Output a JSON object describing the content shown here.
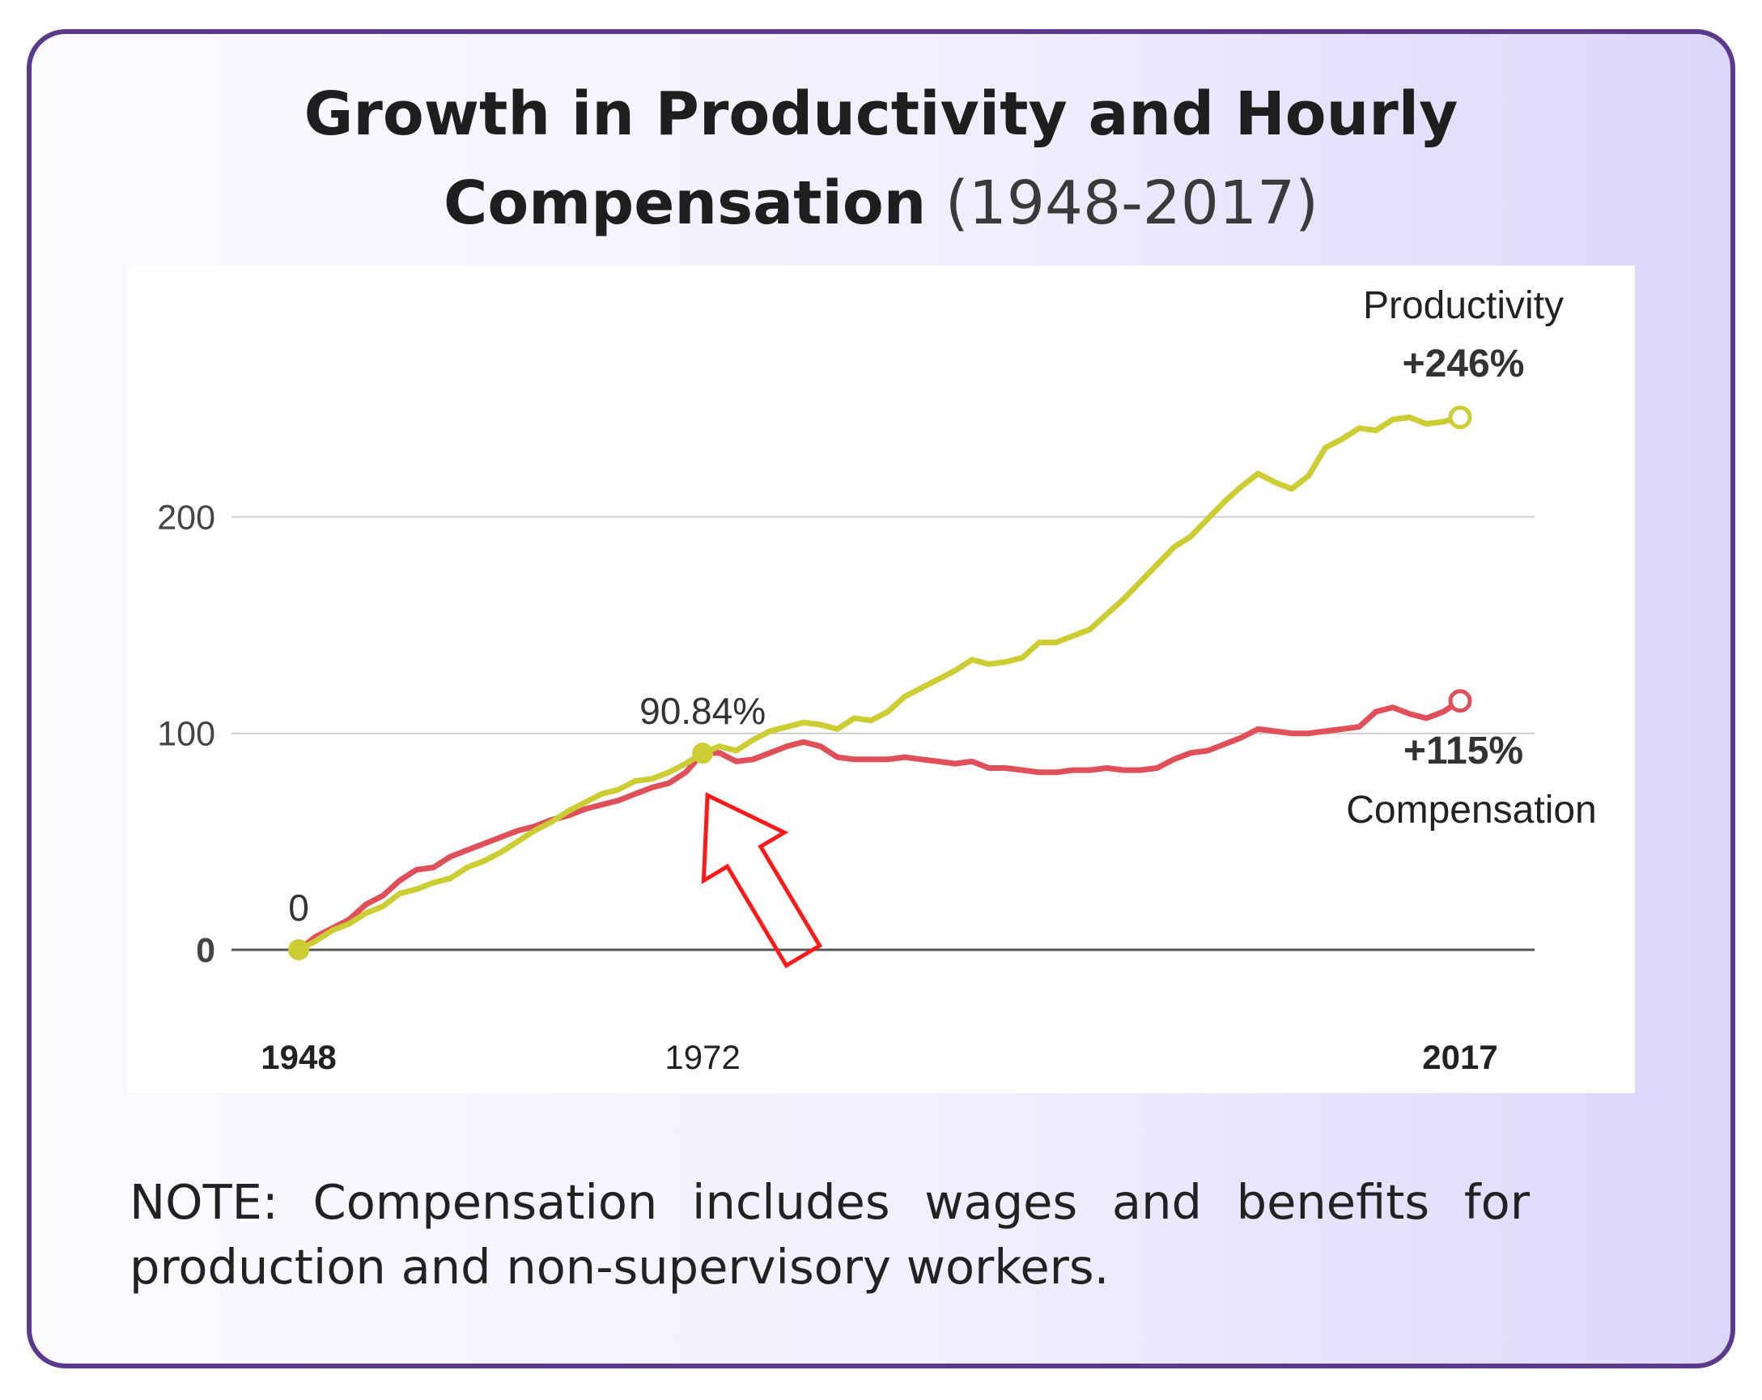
{
  "title": {
    "line1": "Growth in Productivity and Hourly",
    "line2_bold": "Compensation",
    "line2_light": "(1948-2017)"
  },
  "colors": {
    "productivity": "#cccc33",
    "compensation": "#e0505a",
    "arrow": "#ff1a1a",
    "card_border": "#5b3a8c"
  },
  "chart_data": {
    "type": "line",
    "title": "Growth in Productivity and Hourly Compensation (1948-2017)",
    "xlim": [
      1948,
      2017
    ],
    "ylim": [
      0,
      246
    ],
    "y_ticks": [
      "0",
      "100",
      "200"
    ],
    "x_ticks": [
      {
        "value": 1948,
        "label": "1948"
      },
      {
        "value": 1972,
        "label": "1972"
      },
      {
        "value": 2017,
        "label": "2017"
      }
    ],
    "series": [
      {
        "name": "Productivity",
        "end_label": "+246%",
        "x": [
          1948,
          1949,
          1950,
          1951,
          1952,
          1953,
          1954,
          1955,
          1956,
          1957,
          1958,
          1959,
          1960,
          1961,
          1962,
          1963,
          1964,
          1965,
          1966,
          1967,
          1968,
          1969,
          1970,
          1971,
          1972,
          1973,
          1974,
          1975,
          1976,
          1977,
          1978,
          1979,
          1980,
          1981,
          1982,
          1983,
          1984,
          1985,
          1986,
          1987,
          1988,
          1989,
          1990,
          1991,
          1992,
          1993,
          1994,
          1995,
          1996,
          1997,
          1998,
          1999,
          2000,
          2001,
          2002,
          2003,
          2004,
          2005,
          2006,
          2007,
          2008,
          2009,
          2010,
          2011,
          2012,
          2013,
          2014,
          2015,
          2016,
          2017
        ],
        "values": [
          0,
          4,
          9,
          12,
          17,
          20,
          26,
          28,
          31,
          33,
          38,
          41,
          45,
          50,
          55,
          59,
          64,
          68,
          72,
          74,
          78,
          79,
          82,
          86,
          90.84,
          94,
          92,
          97,
          101,
          103,
          105,
          104,
          102,
          107,
          106,
          110,
          117,
          121,
          125,
          129,
          134,
          132,
          133,
          135,
          142,
          142,
          145,
          148,
          155,
          162,
          170,
          178,
          186,
          191,
          199,
          207,
          214,
          220,
          216,
          213,
          219,
          232,
          236,
          241,
          240,
          245,
          246,
          243,
          244,
          246
        ]
      },
      {
        "name": "Compensation",
        "end_label": "+115%",
        "x": [
          1948,
          1949,
          1950,
          1951,
          1952,
          1953,
          1954,
          1955,
          1956,
          1957,
          1958,
          1959,
          1960,
          1961,
          1962,
          1963,
          1964,
          1965,
          1966,
          1967,
          1968,
          1969,
          1970,
          1971,
          1972,
          1973,
          1974,
          1975,
          1976,
          1977,
          1978,
          1979,
          1980,
          1981,
          1982,
          1983,
          1984,
          1985,
          1986,
          1987,
          1988,
          1989,
          1990,
          1991,
          1992,
          1993,
          1994,
          1995,
          1996,
          1997,
          1998,
          1999,
          2000,
          2001,
          2002,
          2003,
          2004,
          2005,
          2006,
          2007,
          2008,
          2009,
          2010,
          2011,
          2012,
          2013,
          2014,
          2015,
          2016,
          2017
        ],
        "values": [
          0,
          6,
          10,
          14,
          21,
          25,
          32,
          37,
          38,
          43,
          46,
          49,
          52,
          55,
          57,
          60,
          62,
          65,
          67,
          69,
          72,
          75,
          77,
          82,
          90.84,
          91,
          87,
          88,
          91,
          94,
          96,
          94,
          89,
          88,
          88,
          88,
          89,
          88,
          87,
          86,
          87,
          84,
          84,
          83,
          82,
          82,
          83,
          83,
          84,
          83,
          83,
          84,
          88,
          91,
          92,
          95,
          98,
          102,
          101,
          100,
          100,
          101,
          102,
          103,
          110,
          112,
          109,
          107,
          110,
          115
        ]
      }
    ],
    "annotations": [
      {
        "x": 1948,
        "y": 0,
        "text": "0"
      },
      {
        "x": 1972,
        "y": 90.84,
        "text": "90.84%"
      }
    ]
  },
  "note": "NOTE: Compensation includes wages and benefits for production and non-supervisory workers."
}
